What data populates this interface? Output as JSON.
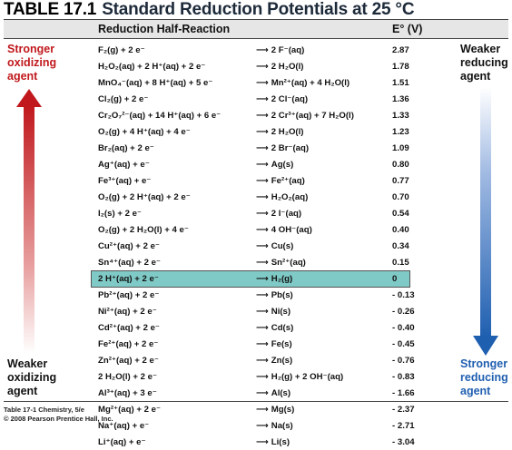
{
  "title": {
    "number": "TABLE 17.1",
    "name": "Standard Reduction Potentials at 25 °C"
  },
  "header": {
    "reaction_col": "Reduction Half-Reaction",
    "potential_col": "E° (V)"
  },
  "left_top_label": [
    "Stronger",
    "oxidizing",
    "agent"
  ],
  "left_bottom_label": [
    "Weaker",
    "oxidizing",
    "agent"
  ],
  "right_top_label": [
    "Weaker",
    "reducing",
    "agent"
  ],
  "right_bottom_label": [
    "Stronger",
    "reducing",
    "agent"
  ],
  "colors": {
    "red_arrow": "#c0181c",
    "blue_arrow": "#1f5fb0",
    "highlight": "#7fc9c6",
    "left_label": "#c0181c",
    "right_bottom_label": "#1f5fb0"
  },
  "rows": [
    {
      "lhs": "F₂(g) + 2 e⁻",
      "rhs": "2 F⁻(aq)",
      "e": "2.87"
    },
    {
      "lhs": "H₂O₂(aq) + 2 H⁺(aq) + 2 e⁻",
      "rhs": "2 H₂O(l)",
      "e": "1.78"
    },
    {
      "lhs": "MnO₄⁻(aq) + 8 H⁺(aq) + 5 e⁻",
      "rhs": "Mn²⁺(aq) + 4 H₂O(l)",
      "e": "1.51"
    },
    {
      "lhs": "Cl₂(g) + 2 e⁻",
      "rhs": "2 Cl⁻(aq)",
      "e": "1.36"
    },
    {
      "lhs": "Cr₂O₇²⁻(aq) + 14 H⁺(aq) + 6 e⁻",
      "rhs": "2 Cr³⁺(aq) + 7 H₂O(l)",
      "e": "1.33"
    },
    {
      "lhs": "O₂(g) + 4 H⁺(aq) + 4 e⁻",
      "rhs": "2 H₂O(l)",
      "e": "1.23"
    },
    {
      "lhs": "Br₂(aq) + 2 e⁻",
      "rhs": "2 Br⁻(aq)",
      "e": "1.09"
    },
    {
      "lhs": "Ag⁺(aq) + e⁻",
      "rhs": "Ag(s)",
      "e": "0.80"
    },
    {
      "lhs": "Fe³⁺(aq) + e⁻",
      "rhs": "Fe²⁺(aq)",
      "e": "0.77"
    },
    {
      "lhs": "O₂(g) + 2 H⁺(aq) + 2 e⁻",
      "rhs": "H₂O₂(aq)",
      "e": "0.70"
    },
    {
      "lhs": "I₂(s) + 2 e⁻",
      "rhs": "2 I⁻(aq)",
      "e": "0.54"
    },
    {
      "lhs": "O₂(g) + 2 H₂O(l) + 4 e⁻",
      "rhs": "4 OH⁻(aq)",
      "e": "0.40"
    },
    {
      "lhs": "Cu²⁺(aq) + 2 e⁻",
      "rhs": "Cu(s)",
      "e": "0.34"
    },
    {
      "lhs": "Sn⁴⁺(aq) + 2 e⁻",
      "rhs": "Sn²⁺(aq)",
      "e": "0.15"
    },
    {
      "lhs": "2 H⁺(aq) + 2 e⁻",
      "rhs": "H₂(g)",
      "e": "0"
    },
    {
      "lhs": "Pb²⁺(aq) + 2 e⁻",
      "rhs": "Pb(s)",
      "e": "- 0.13"
    },
    {
      "lhs": "Ni²⁺(aq) + 2 e⁻",
      "rhs": "Ni(s)",
      "e": "- 0.26"
    },
    {
      "lhs": "Cd²⁺(aq) + 2 e⁻",
      "rhs": "Cd(s)",
      "e": "- 0.40"
    },
    {
      "lhs": "Fe²⁺(aq) + 2 e⁻",
      "rhs": "Fe(s)",
      "e": "- 0.45"
    },
    {
      "lhs": "Zn²⁺(aq) + 2 e⁻",
      "rhs": "Zn(s)",
      "e": "- 0.76"
    },
    {
      "lhs": "2 H₂O(l) + 2 e⁻",
      "rhs": "H₂(g) + 2 OH⁻(aq)",
      "e": "- 0.83"
    },
    {
      "lhs": "Al³⁺(aq) + 3 e⁻",
      "rhs": "Al(s)",
      "e": "- 1.66"
    },
    {
      "lhs": "Mg²⁺(aq) + 2 e⁻",
      "rhs": "Mg(s)",
      "e": "- 2.37"
    },
    {
      "lhs": "Na⁺(aq) + e⁻",
      "rhs": "Na(s)",
      "e": "- 2.71"
    },
    {
      "lhs": "Li⁺(aq) + e⁻",
      "rhs": "Li(s)",
      "e": "- 3.04"
    }
  ],
  "arrow_glyph": "⟶",
  "footer": {
    "line1": "Table 17-1 Chemistry, 5/e",
    "line2": "© 2008 Pearson Prentice Hall, Inc."
  }
}
